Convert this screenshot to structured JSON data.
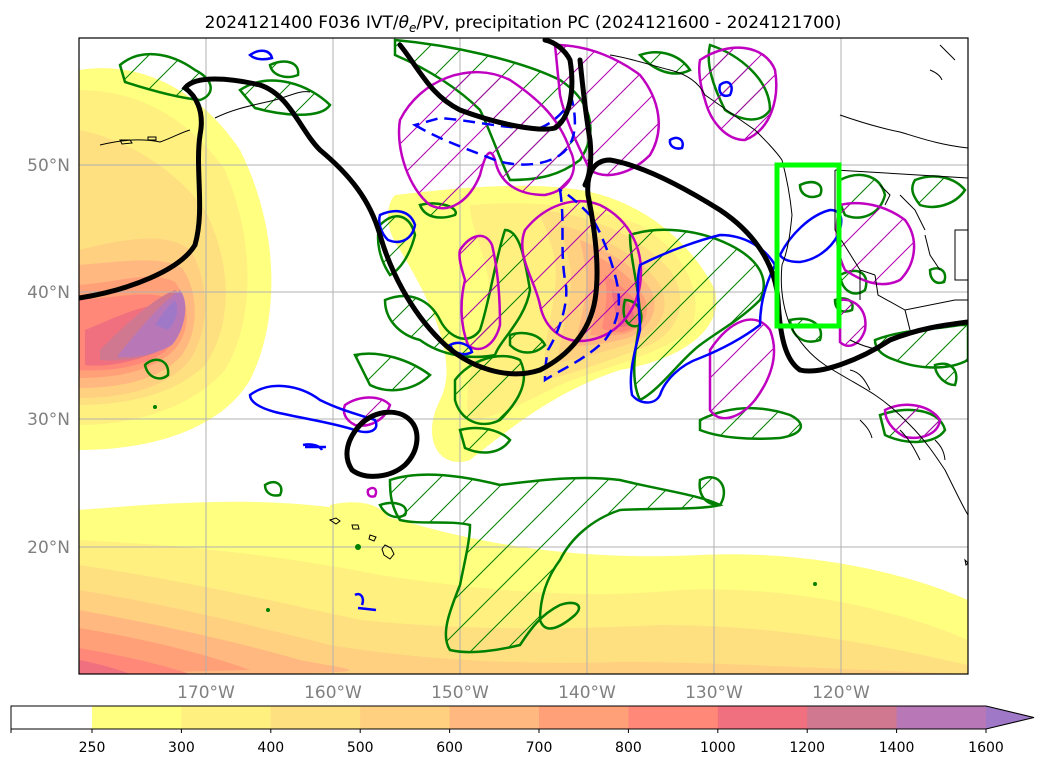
{
  "title": "2024121400 F036 IVT/θe/PV, precipitation PC (2024121600 - 2024121700)",
  "title_parts": {
    "prefix": "2024121400 F036 IVT/",
    "theta": "θ",
    "theta_sub": "e",
    "suffix": "/PV, precipitation PC (2024121600 - 2024121700)"
  },
  "map": {
    "projection": "PlateCarree",
    "lon_range": [
      -180,
      -110
    ],
    "lat_range": [
      10,
      60
    ],
    "lon_ticks": [
      "170°W",
      "160°W",
      "150°W",
      "140°W",
      "130°W",
      "120°W"
    ],
    "lat_ticks": [
      "50°N",
      "40°N",
      "30°N",
      "20°N"
    ],
    "grid": true,
    "highlight_box": {
      "lon": [
        -125,
        -120
      ],
      "lat": [
        37.5,
        50
      ],
      "color": "#00ff00"
    }
  },
  "colorbar": {
    "levels": [
      "250",
      "300",
      "400",
      "500",
      "600",
      "700",
      "800",
      "1000",
      "1200",
      "1400",
      "1600"
    ],
    "colors": [
      "#ffff80",
      "#fff080",
      "#ffe080",
      "#ffd080",
      "#ffb880",
      "#ffa078",
      "#ff8878",
      "#f07080",
      "#d07890",
      "#b878b8",
      "#a078c8"
    ],
    "extend": "max"
  },
  "legend_colors": {
    "pv_contour": "#000000",
    "theta_e_contour": "#0000ff",
    "precip_pc_positive": "#008000",
    "precip_pc_negative": "#c000c0"
  },
  "chart_data": {
    "type": "heatmap",
    "title": "2024121400 F036 IVT/θe/PV, precipitation PC (2024121600 - 2024121700)",
    "variable": "IVT",
    "xlim": [
      -180,
      -110
    ],
    "ylim": [
      10,
      60
    ],
    "colorbar_levels": [
      250,
      300,
      400,
      500,
      600,
      700,
      800,
      1000,
      1200,
      1400,
      1600
    ],
    "ivt_maxima": [
      {
        "lon": -172,
        "lat": 38,
        "value": 1600
      },
      {
        "lon": -136,
        "lat": 38,
        "value": 1000
      },
      {
        "lon": -175,
        "lat": 12,
        "value": 700
      }
    ]
  }
}
